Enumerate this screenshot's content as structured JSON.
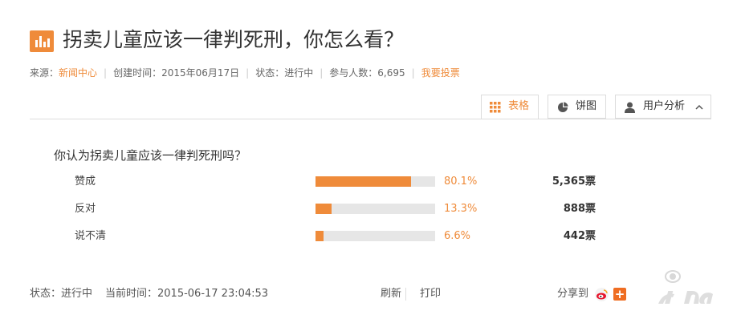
{
  "title": "拐卖儿童应该一律判死刑，你怎么看？",
  "meta": {
    "source_label": "来源：",
    "source_value": "新闻中心",
    "created": "创建时间：2015年06月17日",
    "status": "状态：进行中",
    "participants": "参与人数：6,695",
    "vote_link": "我要投票"
  },
  "tabs": [
    {
      "label": "表格",
      "icon": "grid-icon",
      "active": true
    },
    {
      "label": "饼图",
      "icon": "pie-icon",
      "active": false
    },
    {
      "label": "用户分析",
      "icon": "user-icon",
      "active": false
    }
  ],
  "question": "你认为拐卖儿童应该一律判死刑吗？",
  "options": [
    {
      "label": "赞成",
      "percent": "80.1%",
      "fraction": 0.801,
      "votes": "5,365票"
    },
    {
      "label": "反对",
      "percent": "13.3%",
      "fraction": 0.133,
      "votes": "888票"
    },
    {
      "label": "说不清",
      "percent": "6.6%",
      "fraction": 0.066,
      "votes": "442票"
    }
  ],
  "footer": {
    "status": "状态：进行中",
    "current_time": "当前时间：2015-06-17 23:04:53",
    "refresh": "刷新",
    "print": "打印",
    "share": "分享到"
  },
  "colors": {
    "accent": "#ef8b3a",
    "track": "#e6e6e6"
  }
}
